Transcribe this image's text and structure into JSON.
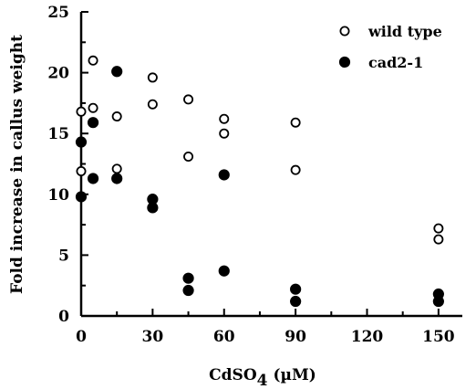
{
  "chart_data": {
    "type": "scatter",
    "title": "",
    "xlabel": "CdSO",
    "xlabel_subscript": "4",
    "xlabel_unit": "(µM)",
    "ylabel": "Fold increase in callus weight",
    "xlim": [
      0,
      160
    ],
    "ylim": [
      0,
      25
    ],
    "xticks": [
      0,
      30,
      60,
      90,
      120,
      150
    ],
    "yticks": [
      0,
      5,
      10,
      15,
      20,
      25
    ],
    "grid": false,
    "legend_position": "top-right",
    "series": [
      {
        "name": "wild type",
        "marker": "open-circle",
        "color": "#000000",
        "points": [
          [
            0,
            16.8
          ],
          [
            0,
            11.9
          ],
          [
            5,
            21.0
          ],
          [
            5,
            17.1
          ],
          [
            15,
            16.4
          ],
          [
            15,
            12.1
          ],
          [
            30,
            19.6
          ],
          [
            30,
            17.4
          ],
          [
            45,
            17.8
          ],
          [
            45,
            13.1
          ],
          [
            60,
            16.2
          ],
          [
            60,
            15.0
          ],
          [
            90,
            15.9
          ],
          [
            90,
            12.0
          ],
          [
            150,
            7.2
          ],
          [
            150,
            6.3
          ]
        ]
      },
      {
        "name": "cad2-1",
        "marker": "filled-circle",
        "color": "#000000",
        "points": [
          [
            0,
            14.3
          ],
          [
            0,
            9.8
          ],
          [
            5,
            15.9
          ],
          [
            5,
            11.3
          ],
          [
            15,
            20.1
          ],
          [
            15,
            11.3
          ],
          [
            30,
            9.6
          ],
          [
            30,
            8.9
          ],
          [
            45,
            3.1
          ],
          [
            45,
            2.1
          ],
          [
            60,
            3.7
          ],
          [
            60,
            11.6
          ],
          [
            90,
            2.2
          ],
          [
            90,
            1.2
          ],
          [
            150,
            1.8
          ],
          [
            150,
            1.2
          ]
        ]
      }
    ]
  }
}
